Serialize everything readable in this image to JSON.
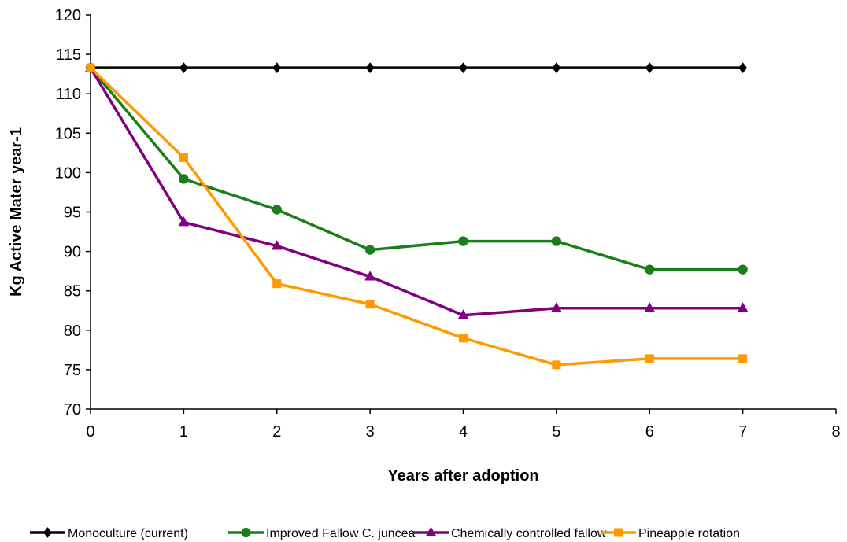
{
  "chart_data": {
    "type": "line",
    "title": "",
    "xlabel": "Years after adoption",
    "ylabel": "Kg Active Mater year-1",
    "xlim": [
      0,
      8
    ],
    "ylim": [
      70,
      120
    ],
    "xticks": [
      0,
      1,
      2,
      3,
      4,
      5,
      6,
      7,
      8
    ],
    "yticks": [
      70,
      75,
      80,
      85,
      90,
      95,
      100,
      105,
      110,
      115,
      120
    ],
    "x": [
      0,
      1,
      2,
      3,
      4,
      5,
      6,
      7
    ],
    "grid": false,
    "legend_position": "bottom",
    "series": [
      {
        "name": "Monoculture (current)",
        "color": "#000000",
        "marker": "diamond",
        "values": [
          113.3,
          113.3,
          113.3,
          113.3,
          113.3,
          113.3,
          113.3,
          113.3
        ]
      },
      {
        "name": "Improved Fallow C. juncea",
        "color": "#1a7f1a",
        "marker": "circle",
        "values": [
          113.3,
          99.2,
          95.3,
          90.2,
          91.3,
          91.3,
          87.7,
          87.7
        ]
      },
      {
        "name": "Chemically controlled fallow",
        "color": "#800080",
        "marker": "triangle",
        "values": [
          113.3,
          93.7,
          90.7,
          86.8,
          81.9,
          82.8,
          82.8,
          82.8
        ]
      },
      {
        "name": "Pineapple rotation",
        "color": "#ff9900",
        "marker": "square",
        "values": [
          113.3,
          101.9,
          85.9,
          83.3,
          79.0,
          75.6,
          76.4,
          76.4
        ]
      }
    ]
  }
}
